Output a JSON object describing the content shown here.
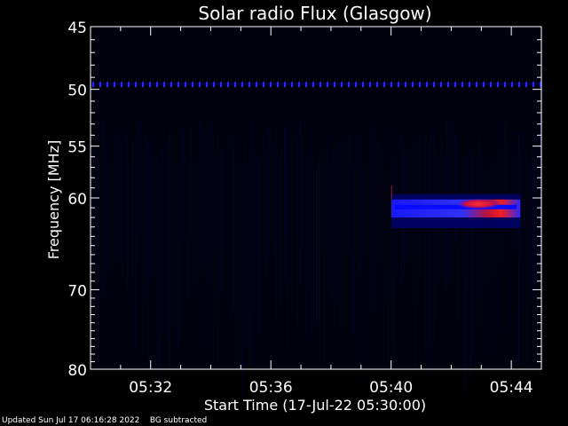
{
  "chart_data": {
    "type": "heatmap",
    "title": "Solar radio Flux (Glasgow)",
    "ylabel": "Frequency [MHz]",
    "xlabel": "Start Time (17-Jul-22 05:30:00)",
    "x_range_min": [
      0,
      15
    ],
    "y_range_mhz": [
      45,
      80
    ],
    "y_scale": "log",
    "y_ticks": [
      45,
      50,
      55,
      60,
      70,
      80
    ],
    "y_tick_labels": [
      "45",
      "50",
      "55",
      "60",
      "70",
      "80"
    ],
    "x_ticks_min": [
      2,
      6,
      10,
      14
    ],
    "x_tick_labels": [
      "05:32",
      "05:36",
      "05:40",
      "05:44"
    ],
    "features": [
      {
        "kind": "interference-band",
        "freq_mhz": 49.6,
        "t_start_min": 0,
        "t_end_min": 15
      },
      {
        "kind": "burst",
        "t_start_min": 10.0,
        "t_end_min": 14.3,
        "freq_low_mhz": 59.8,
        "freq_high_mhz": 62.0,
        "peak_t_min": 12.9,
        "peak_freq_mhz": 60.6
      }
    ],
    "colors": {
      "background": "#000000",
      "low": "#000066",
      "mid": "#0000ff",
      "high": "#ff0000"
    }
  },
  "footer": {
    "updated": "Updated Sun Jul 17 06:16:28 2022",
    "note": "BG subtracted"
  }
}
